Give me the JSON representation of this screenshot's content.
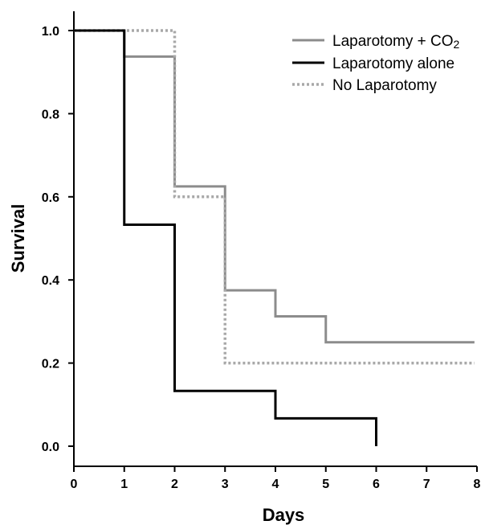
{
  "chart_data": {
    "type": "line",
    "subtype": "step",
    "xlabel": "Days",
    "ylabel": "Survival",
    "xlim": [
      0,
      8
    ],
    "ylim": [
      0,
      1.0
    ],
    "x_ticks": [
      "0",
      "1",
      "2",
      "3",
      "4",
      "5",
      "6",
      "7",
      "8"
    ],
    "y_ticks": [
      "0.0",
      "0.2",
      "0.4",
      "0.6",
      "0.8",
      "1.0"
    ],
    "grid": false,
    "legend_position": "top-right",
    "series": [
      {
        "name": "Laparotomy + CO2",
        "name_main": "Laparotomy + CO",
        "name_sub": "2",
        "color": "#8c8c8c",
        "dash": "solid",
        "x": [
          0,
          1,
          2,
          3,
          4,
          5,
          7.95
        ],
        "y": [
          1.0,
          0.9375,
          0.625,
          0.375,
          0.3125,
          0.25,
          0.25
        ]
      },
      {
        "name": "Laparotomy alone",
        "name_main": "Laparotomy alone",
        "name_sub": "",
        "color": "#000000",
        "dash": "solid",
        "x": [
          0,
          1,
          2,
          4,
          6
        ],
        "y": [
          1.0,
          0.533,
          0.133,
          0.067,
          0.0
        ]
      },
      {
        "name": "No Laparotomy",
        "name_main": "No Laparotomy",
        "name_sub": "",
        "color": "#a8a8a8",
        "dash": "dotted",
        "x": [
          0,
          2,
          3,
          7.95
        ],
        "y": [
          1.0,
          0.6,
          0.2,
          0.2
        ]
      }
    ]
  }
}
